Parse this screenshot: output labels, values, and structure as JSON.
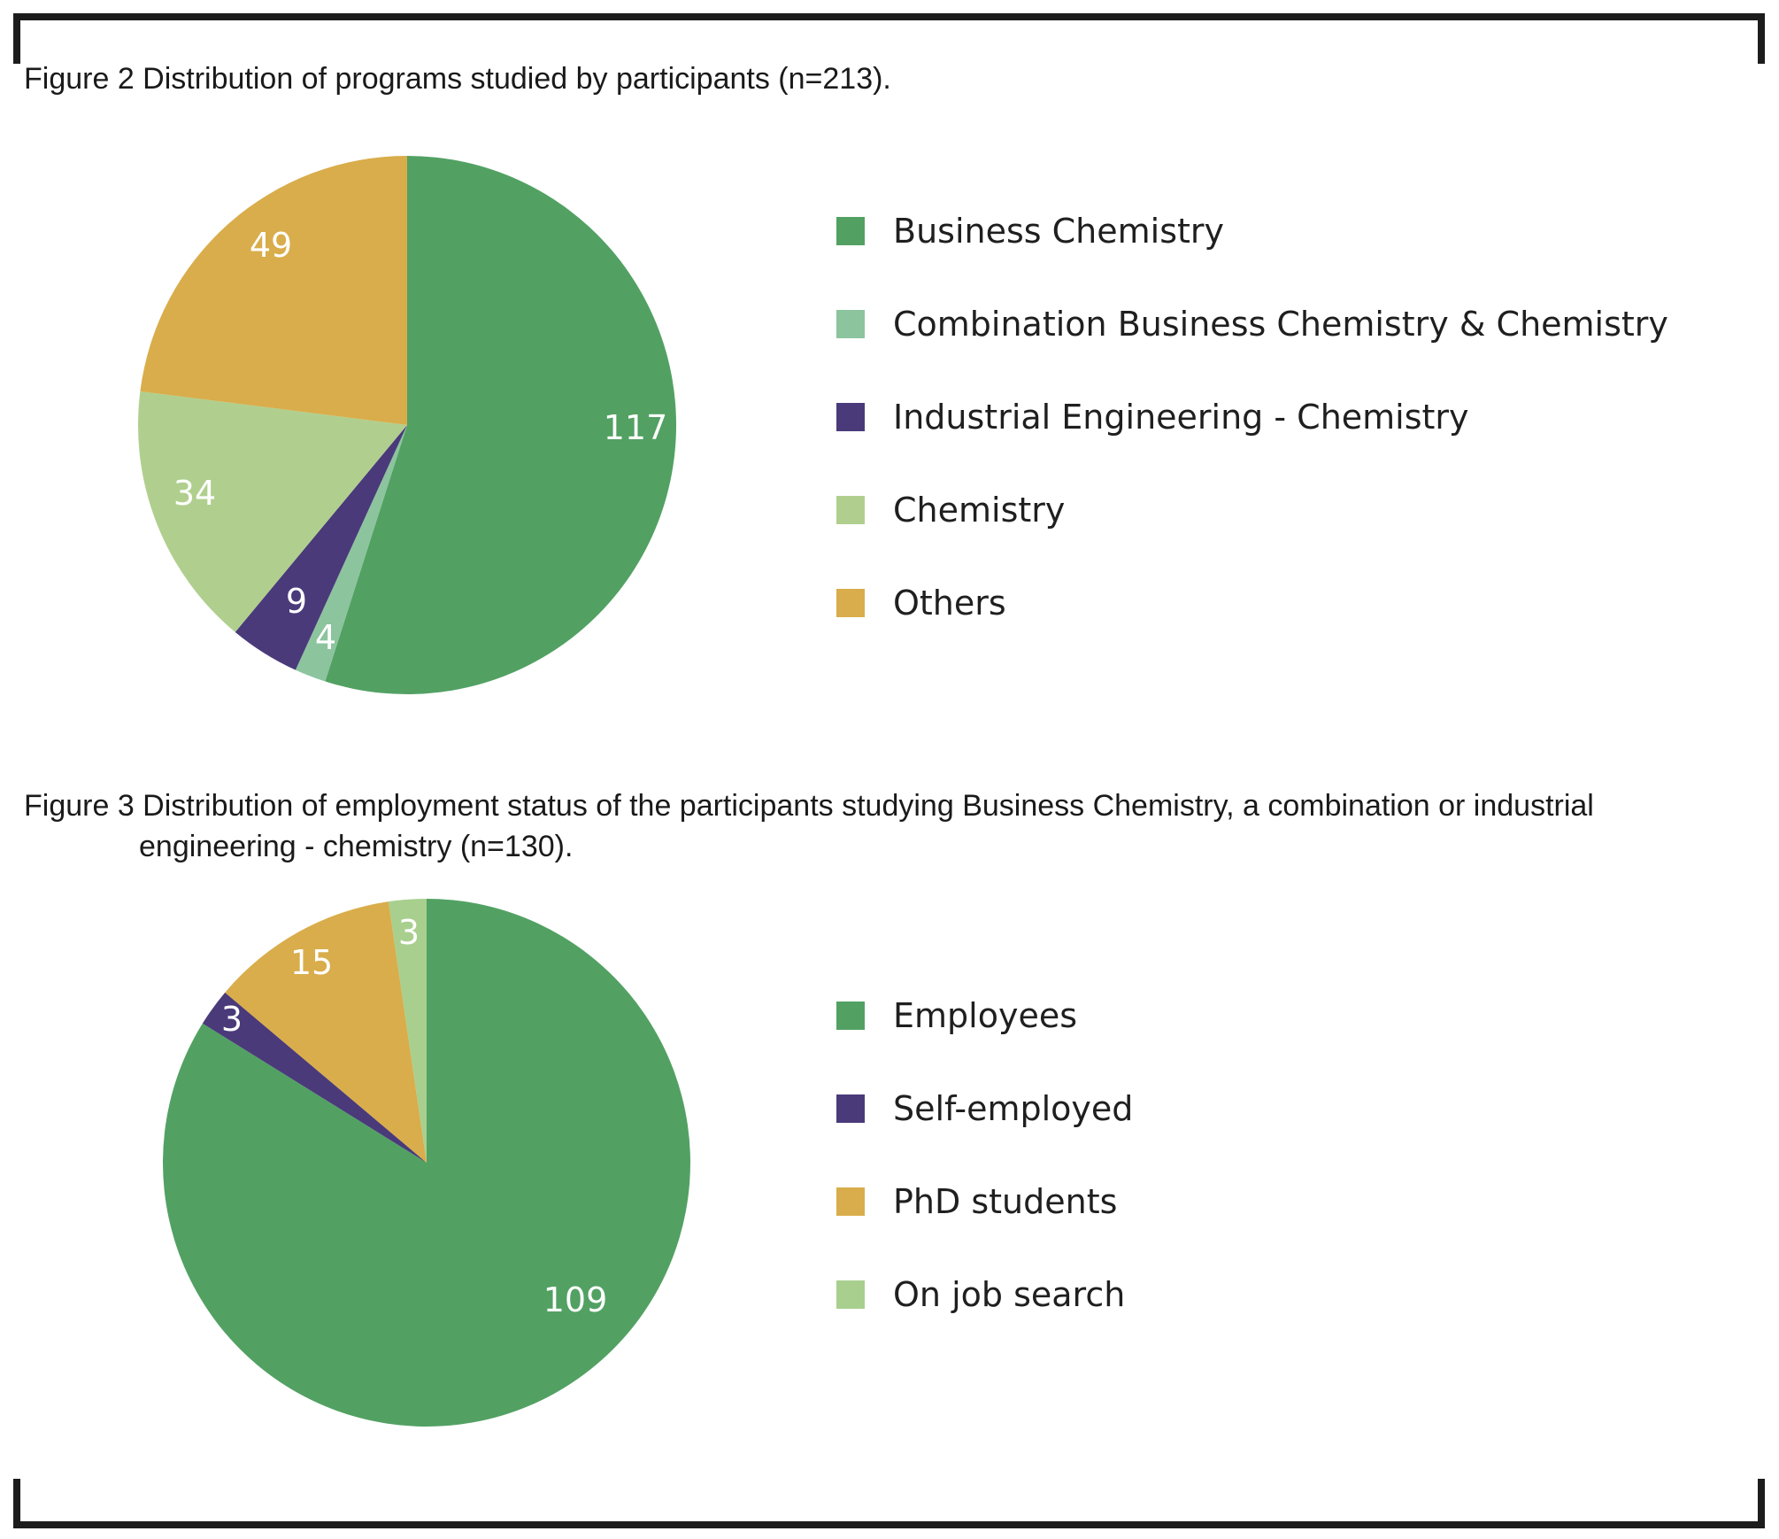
{
  "chart_data": [
    {
      "type": "pie",
      "title": "Figure 2 Distribution of programs studied by participants (n=213).",
      "categories": [
        "Business Chemistry",
        "Combination Business Chemistry & Chemistry",
        "Industrial Engineering - Chemistry",
        "Chemistry",
        "Others"
      ],
      "values": [
        117,
        4,
        9,
        34,
        49
      ],
      "colors": [
        "#52a163",
        "#8cc49e",
        "#4a3a7a",
        "#b0cf8e",
        "#d9ad4b"
      ],
      "legend_position": "right"
    },
    {
      "type": "pie",
      "title_lines": [
        "Figure 3 Distribution of employment status of the participants studying Business Chemistry, a combination or industrial",
        "engineering - chemistry (n=130)."
      ],
      "categories": [
        "Employees",
        "Self-employed",
        "PhD students",
        "On job search"
      ],
      "values": [
        109,
        3,
        15,
        3
      ],
      "colors": [
        "#52a163",
        "#4a3a7a",
        "#d9ad4b",
        "#a8cf8e"
      ],
      "legend_position": "right"
    }
  ]
}
